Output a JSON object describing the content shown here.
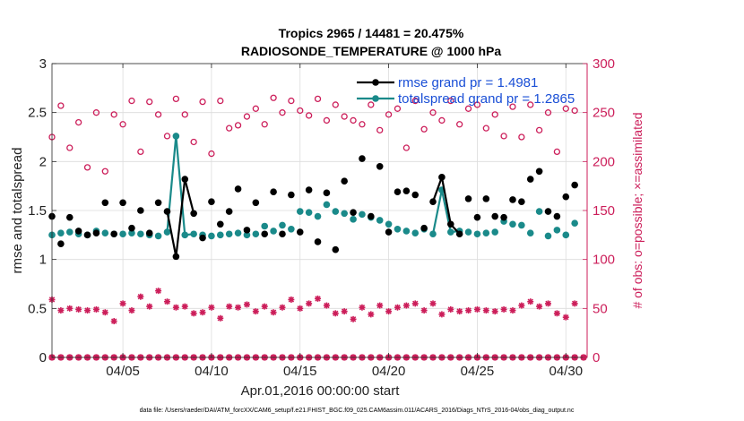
{
  "chart_data": {
    "type": "line",
    "title_line1": "Tropics 2965 / 14481 = 20.475%",
    "title_line2": "RADIOSONDE_TEMPERATURE @ 1000 hPa",
    "xlabel": "Apr.01,2016 00:00:00 start",
    "ylabel_left": "rmse and totalspread",
    "ylabel_right": "# of obs: o=possible; ×=assimilated",
    "footer": "data file: /Users/raeder/DAI/ATM_forcXX/CAM6_setup/f.e21.FHIST_BGC.f09_025.CAM6assim.011/ACARS_2016/Diags_NTrS_2016-04/obs_diag_output.nc",
    "xlim": [
      1,
      31.2
    ],
    "ylim_left": [
      0,
      3
    ],
    "ylim_right": [
      0,
      300
    ],
    "x_ticks": [
      5,
      10,
      15,
      20,
      25,
      30
    ],
    "x_tick_labels": [
      "04/05",
      "04/10",
      "04/15",
      "04/20",
      "04/25",
      "04/30"
    ],
    "y_left_ticks": [
      0,
      0.5,
      1,
      1.5,
      2,
      2.5,
      3
    ],
    "y_left_tick_labels": [
      "0",
      "0.5",
      "1",
      "1.5",
      "2",
      "2.5",
      "3"
    ],
    "y_right_ticks": [
      0,
      50,
      100,
      150,
      200,
      250,
      300
    ],
    "y_right_tick_labels": [
      "0",
      "50",
      "100",
      "150",
      "200",
      "250",
      "300"
    ],
    "grid": true,
    "colors": {
      "rmse": "#000000",
      "spread": "#1a8a8a",
      "obs": "#cc1e5a",
      "legend_text": "#1a4fd6"
    },
    "series": [
      {
        "name": "rmse grand pr = 1.4981",
        "axis": "left",
        "x": [
          1.0,
          1.5,
          2.0,
          2.5,
          3.0,
          3.5,
          4.0,
          4.5,
          5.0,
          5.5,
          6.0,
          6.5,
          7.0,
          7.5,
          8.0,
          8.5,
          9.0,
          9.5,
          10.0,
          10.5,
          11.0,
          11.5,
          12.0,
          12.5,
          13.0,
          13.5,
          14.0,
          14.5,
          15.0,
          15.5,
          16.0,
          16.5,
          17.0,
          17.5,
          18.0,
          18.5,
          19.0,
          19.5,
          20.0,
          20.5,
          21.0,
          21.5,
          22.0,
          22.5,
          23.0,
          23.5,
          24.0,
          24.5,
          25.0,
          25.5,
          26.0,
          26.5,
          27.0,
          27.5,
          28.0,
          28.5,
          29.0,
          29.5,
          30.0,
          30.5
        ],
        "values": [
          1.44,
          1.16,
          1.43,
          1.29,
          1.25,
          1.27,
          1.58,
          1.26,
          1.58,
          1.32,
          1.5,
          1.27,
          1.58,
          1.49,
          1.03,
          1.82,
          1.47,
          1.22,
          1.59,
          1.36,
          1.49,
          1.72,
          1.3,
          1.58,
          1.26,
          1.69,
          1.26,
          1.66,
          1.28,
          1.71,
          1.18,
          1.68,
          1.1,
          1.8,
          1.48,
          2.03,
          1.44,
          1.95,
          1.28,
          1.69,
          1.7,
          1.66,
          1.32,
          1.59,
          1.84,
          1.36,
          1.26,
          1.62,
          1.43,
          1.62,
          1.44,
          1.43,
          1.61,
          1.59,
          1.82,
          1.9,
          1.49,
          1.44,
          1.64,
          1.76
        ]
      },
      {
        "name": "totalspread grand pr = 1.2865",
        "axis": "left",
        "x": [
          1.0,
          1.5,
          2.0,
          2.5,
          3.0,
          3.5,
          4.0,
          4.5,
          5.0,
          5.5,
          6.0,
          6.5,
          7.0,
          7.5,
          8.0,
          8.5,
          9.0,
          9.5,
          10.0,
          10.5,
          11.0,
          11.5,
          12.0,
          12.5,
          13.0,
          13.5,
          14.0,
          14.5,
          15.0,
          15.5,
          16.0,
          16.5,
          17.0,
          17.5,
          18.0,
          18.5,
          19.0,
          19.5,
          20.0,
          20.5,
          21.0,
          21.5,
          22.0,
          22.5,
          23.0,
          23.5,
          24.0,
          24.5,
          25.0,
          25.5,
          26.0,
          26.5,
          27.0,
          27.5,
          28.0,
          28.5,
          29.0,
          29.5,
          30.0,
          30.5
        ],
        "values": [
          1.25,
          1.27,
          1.28,
          1.26,
          1.25,
          1.29,
          1.27,
          1.26,
          1.26,
          1.27,
          1.26,
          1.25,
          1.24,
          1.28,
          2.26,
          1.25,
          1.26,
          1.25,
          1.24,
          1.25,
          1.26,
          1.27,
          1.25,
          1.26,
          1.34,
          1.29,
          1.35,
          1.31,
          1.49,
          1.48,
          1.44,
          1.56,
          1.49,
          1.47,
          1.41,
          1.46,
          1.43,
          1.4,
          1.36,
          1.31,
          1.29,
          1.27,
          1.31,
          1.26,
          1.71,
          1.28,
          1.29,
          1.28,
          1.26,
          1.27,
          1.28,
          1.39,
          1.36,
          1.35,
          1.27,
          1.49,
          1.24,
          1.3,
          1.25,
          1.37
        ]
      },
      {
        "name": "possible obs",
        "axis": "right",
        "marker": "o",
        "x": [
          1.0,
          1.5,
          2.0,
          2.5,
          3.0,
          3.5,
          4.0,
          4.5,
          5.0,
          5.5,
          6.0,
          6.5,
          7.0,
          7.5,
          8.0,
          8.5,
          9.0,
          9.5,
          10.0,
          10.5,
          11.0,
          11.5,
          12.0,
          12.5,
          13.0,
          13.5,
          14.0,
          14.5,
          15.0,
          15.5,
          16.0,
          16.5,
          17.0,
          17.5,
          18.0,
          18.5,
          19.0,
          19.5,
          20.0,
          20.5,
          21.0,
          21.5,
          22.0,
          22.5,
          23.0,
          23.5,
          24.0,
          24.5,
          25.0,
          25.5,
          26.0,
          26.5,
          27.0,
          27.5,
          28.0,
          28.5,
          29.0,
          29.5,
          30.0,
          30.5
        ],
        "values": [
          225,
          257,
          214,
          240,
          194,
          250,
          190,
          248,
          238,
          262,
          210,
          261,
          248,
          226,
          264,
          248,
          220,
          261,
          208,
          262,
          234,
          237,
          246,
          254,
          238,
          265,
          250,
          262,
          252,
          247,
          264,
          242,
          258,
          246,
          242,
          238,
          258,
          232,
          248,
          254,
          214,
          262,
          233,
          250,
          242,
          262,
          238,
          254,
          258,
          234,
          248,
          226,
          256,
          225,
          258,
          232,
          250,
          210,
          254,
          252
        ]
      },
      {
        "name": "assimilated obs",
        "axis": "right",
        "marker": "x",
        "x": [
          1.0,
          1.5,
          2.0,
          2.5,
          3.0,
          3.5,
          4.0,
          4.5,
          5.0,
          5.5,
          6.0,
          6.5,
          7.0,
          7.5,
          8.0,
          8.5,
          9.0,
          9.5,
          10.0,
          10.5,
          11.0,
          11.5,
          12.0,
          12.5,
          13.0,
          13.5,
          14.0,
          14.5,
          15.0,
          15.5,
          16.0,
          16.5,
          17.0,
          17.5,
          18.0,
          18.5,
          19.0,
          19.5,
          20.0,
          20.5,
          21.0,
          21.5,
          22.0,
          22.5,
          23.0,
          23.5,
          24.0,
          24.5,
          25.0,
          25.5,
          26.0,
          26.5,
          27.0,
          27.5,
          28.0,
          28.5,
          29.0,
          29.5,
          30.0,
          30.5
        ],
        "values": [
          59,
          48,
          50,
          49,
          48,
          49,
          46,
          37,
          55,
          48,
          62,
          52,
          68,
          57,
          51,
          52,
          45,
          46,
          51,
          40,
          52,
          51,
          54,
          47,
          52,
          46,
          51,
          59,
          50,
          55,
          60,
          53,
          45,
          47,
          39,
          51,
          44,
          53,
          47,
          51,
          53,
          55,
          48,
          55,
          44,
          49,
          47,
          48,
          49,
          48,
          47,
          49,
          48,
          53,
          57,
          52,
          55,
          45,
          41,
          55
        ]
      }
    ]
  }
}
